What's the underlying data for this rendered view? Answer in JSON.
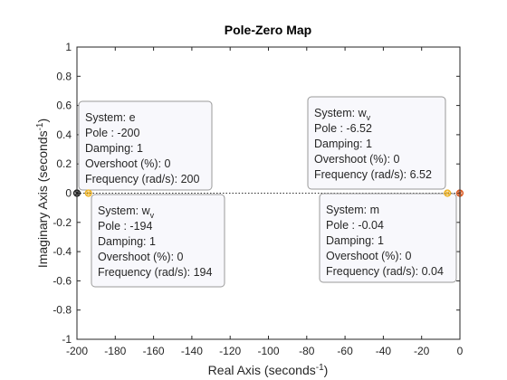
{
  "chart_data": {
    "type": "scatter",
    "title": "Pole-Zero Map",
    "xlabel_text": "Real Axis (seconds",
    "xlabel_sup": "-1",
    "xlabel_close": ")",
    "ylabel_text": "Imaginary Axis (seconds",
    "ylabel_sup": "-1",
    "ylabel_close": ")",
    "xlim": [
      -200,
      0
    ],
    "ylim": [
      -1,
      1
    ],
    "xticks": [
      -200,
      -180,
      -160,
      -140,
      -120,
      -100,
      -80,
      -60,
      -40,
      -20,
      0
    ],
    "yticks": [
      -1,
      -0.8,
      -0.6,
      -0.4,
      -0.2,
      0,
      0.2,
      0.4,
      0.6,
      0.8,
      1
    ],
    "grid": false,
    "zero_line": true,
    "series": [
      {
        "name": "e",
        "x": [
          -200
        ],
        "y": [
          0
        ],
        "color": "#1a1a1a"
      },
      {
        "name": "w_v",
        "x": [
          -194,
          -6.52
        ],
        "y": [
          0,
          0
        ],
        "color": "#edb120"
      },
      {
        "name": "m",
        "x": [
          -0.04
        ],
        "y": [
          0
        ],
        "color": "#d95319"
      }
    ],
    "annotations": [
      {
        "anchor": "above-right",
        "system": "e",
        "system_sub": "",
        "lines": [
          "Pole : -200",
          "Damping: 1",
          "Overshoot (%): 0",
          "Frequency (rad/s): 200"
        ]
      },
      {
        "anchor": "below-right",
        "system": "w",
        "system_sub": "v",
        "lines": [
          "Pole : -194",
          "Damping: 1",
          "Overshoot (%): 0",
          "Frequency (rad/s): 194"
        ]
      },
      {
        "anchor": "above-left",
        "system": "w",
        "system_sub": "v",
        "lines": [
          "Pole : -6.52",
          "Damping: 1",
          "Overshoot (%): 0",
          "Frequency (rad/s): 6.52"
        ]
      },
      {
        "anchor": "below-left",
        "system": "m",
        "system_sub": "",
        "lines": [
          "Pole : -0.04",
          "Damping: 1",
          "Overshoot (%): 0",
          "Frequency (rad/s): 0.04"
        ]
      }
    ]
  }
}
